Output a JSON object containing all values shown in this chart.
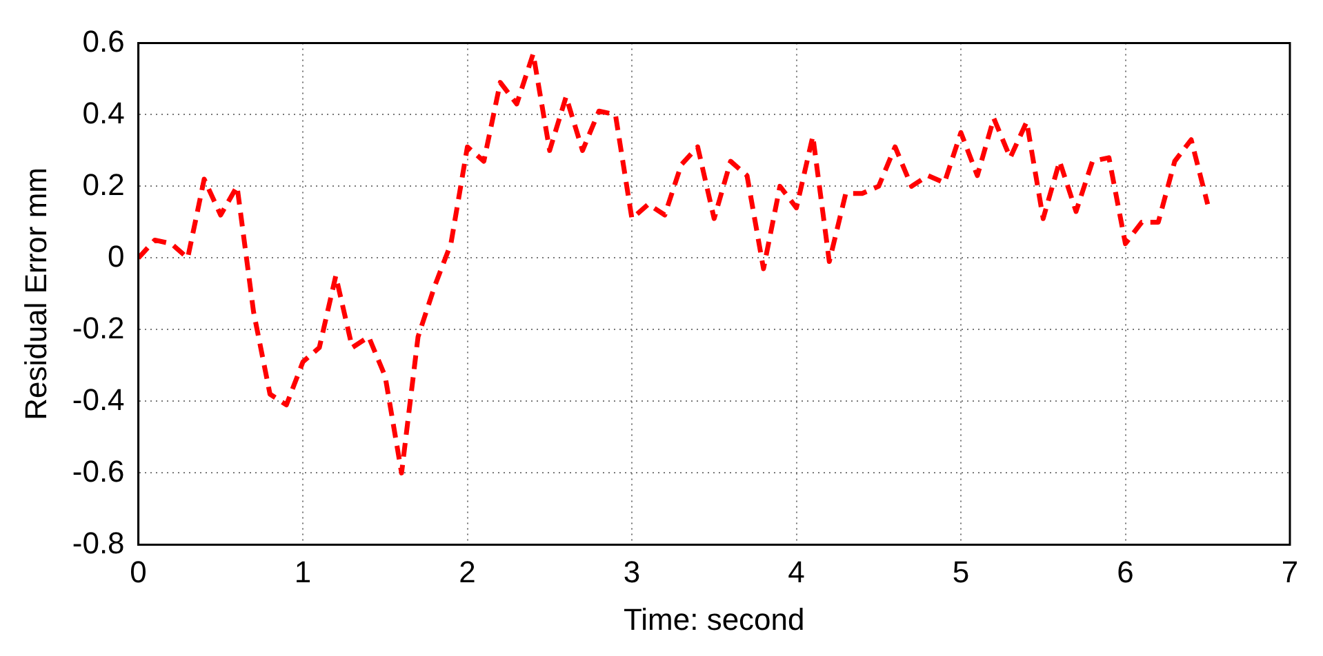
{
  "chart_data": {
    "type": "line",
    "xlabel": "Time: second",
    "ylabel": "Residual Error mm",
    "x": [
      0,
      0.1,
      0.2,
      0.3,
      0.4,
      0.5,
      0.6,
      0.7,
      0.8,
      0.9,
      1.0,
      1.1,
      1.2,
      1.3,
      1.4,
      1.5,
      1.6,
      1.7,
      1.8,
      1.9,
      2.0,
      2.1,
      2.2,
      2.3,
      2.4,
      2.5,
      2.6,
      2.7,
      2.8,
      2.9,
      3.0,
      3.1,
      3.2,
      3.3,
      3.4,
      3.5,
      3.6,
      3.7,
      3.8,
      3.9,
      4.0,
      4.1,
      4.2,
      4.3,
      4.4,
      4.5,
      4.6,
      4.7,
      4.8,
      4.9,
      5.0,
      5.1,
      5.2,
      5.3,
      5.4,
      5.5,
      5.6,
      5.7,
      5.8,
      5.9,
      6.0,
      6.1,
      6.2,
      6.3,
      6.4,
      6.5
    ],
    "series": [
      {
        "color": "#ff0000",
        "values": [
          0.0,
          0.05,
          0.04,
          0.0,
          0.22,
          0.12,
          0.2,
          -0.15,
          -0.38,
          -0.41,
          -0.29,
          -0.25,
          -0.05,
          -0.25,
          -0.22,
          -0.33,
          -0.6,
          -0.22,
          -0.08,
          0.04,
          0.31,
          0.27,
          0.49,
          0.43,
          0.57,
          0.3,
          0.45,
          0.3,
          0.41,
          0.4,
          0.11,
          0.15,
          0.12,
          0.26,
          0.31,
          0.11,
          0.27,
          0.23,
          -0.03,
          0.2,
          0.14,
          0.34,
          -0.01,
          0.18,
          0.18,
          0.2,
          0.31,
          0.2,
          0.23,
          0.21,
          0.35,
          0.23,
          0.39,
          0.28,
          0.38,
          0.11,
          0.27,
          0.13,
          0.27,
          0.28,
          0.04,
          0.1,
          0.1,
          0.27,
          0.33,
          0.15
        ]
      }
    ],
    "xlim": [
      0,
      7
    ],
    "xticks": [
      0,
      1,
      2,
      3,
      4,
      5,
      6,
      7
    ],
    "ylim": [
      -0.8,
      0.6
    ],
    "yticks": [
      -0.8,
      -0.6,
      -0.4,
      -0.2,
      0,
      0.2,
      0.4,
      0.6
    ],
    "grid": true,
    "legend": false,
    "marker": "none",
    "line_style": "dashed"
  }
}
